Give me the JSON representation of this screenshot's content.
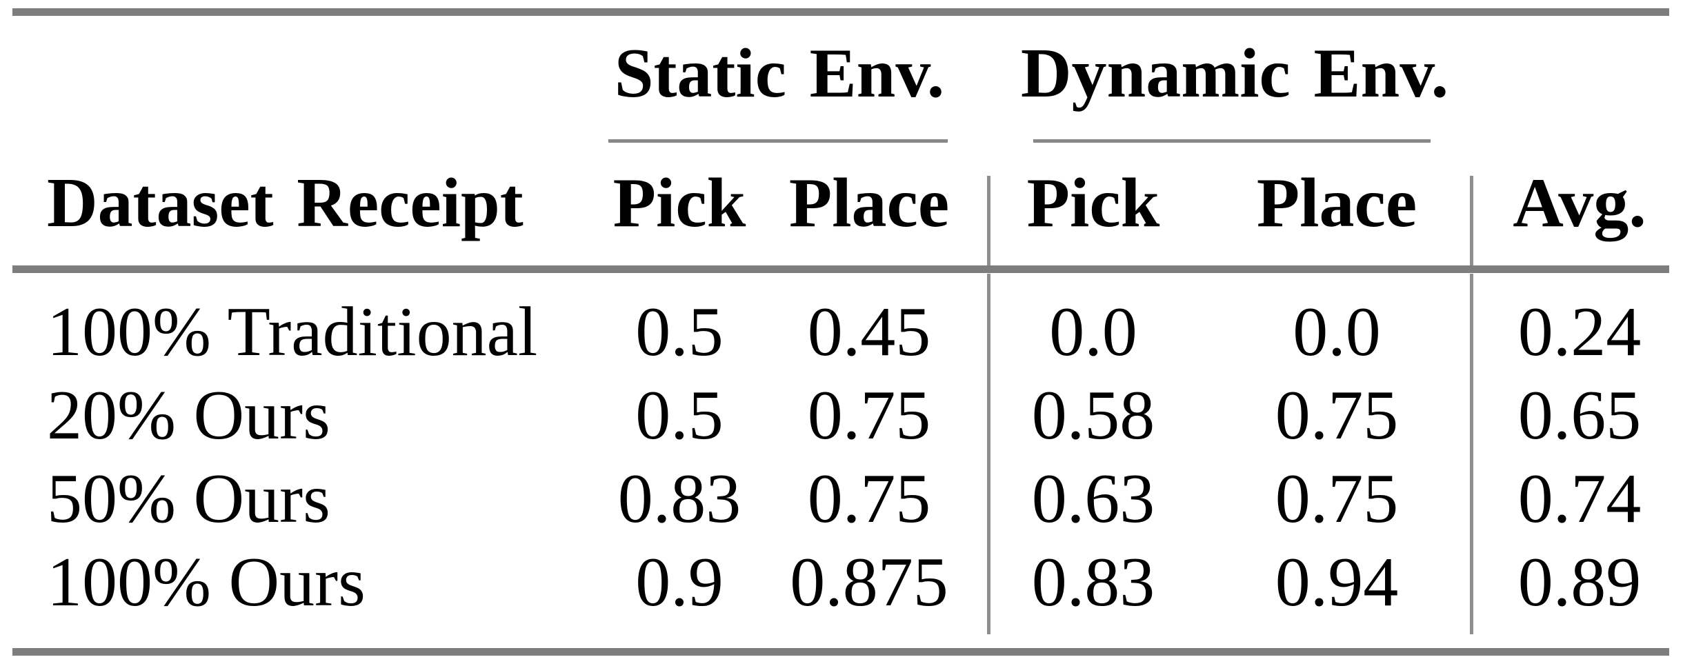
{
  "table": {
    "group_headers": [
      {
        "label": "Static Env."
      },
      {
        "label": "Dynamic Env."
      }
    ],
    "column_headers": {
      "row_label": "Dataset Receipt",
      "static_pick": "Pick",
      "static_place": "Place",
      "dynamic_pick": "Pick",
      "dynamic_place": "Place",
      "avg": "Avg."
    },
    "rows": [
      {
        "label": "100% Traditional",
        "static_pick": "0.5",
        "static_place": "0.45",
        "dynamic_pick": "0.0",
        "dynamic_place": "0.0",
        "avg": "0.24"
      },
      {
        "label": "20% Ours",
        "static_pick": "0.5",
        "static_place": "0.75",
        "dynamic_pick": "0.58",
        "dynamic_place": "0.75",
        "avg": "0.65"
      },
      {
        "label": "50% Ours",
        "static_pick": "0.83",
        "static_place": "0.75",
        "dynamic_pick": "0.63",
        "dynamic_place": "0.75",
        "avg": "0.74"
      },
      {
        "label": "100% Ours",
        "static_pick": "0.9",
        "static_place": "0.875",
        "dynamic_pick": "0.83",
        "dynamic_place": "0.94",
        "avg": "0.89"
      }
    ]
  },
  "colors": {
    "rule_thick": "#7d7d7d",
    "rule_thin": "#878787",
    "vline": "#8f8f8f",
    "text": "#000000",
    "background": "#ffffff"
  }
}
